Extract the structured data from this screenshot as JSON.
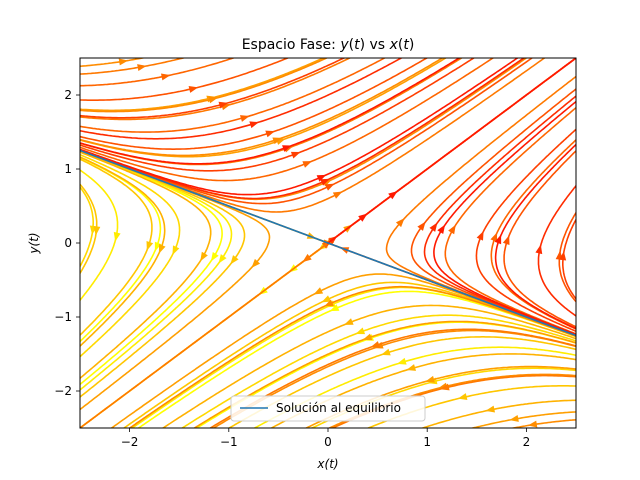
{
  "chart_data": {
    "type": "streamplot",
    "title": "Espacio Fase: y(t) vs x(t)",
    "xlabel": "x(t)",
    "ylabel": "y(t)",
    "xlim": [
      -2.5,
      2.5
    ],
    "ylim": [
      -2.5,
      2.5
    ],
    "xticks": [
      -2,
      -1,
      0,
      1,
      2
    ],
    "yticks": [
      -2,
      -1,
      0,
      1,
      2
    ],
    "xtick_labels": [
      "−2",
      "−1",
      "0",
      "1",
      "2"
    ],
    "ytick_labels": [
      "−2",
      "−1",
      "0",
      "1",
      "2"
    ],
    "grid": false,
    "colormap": "autumn_r",
    "legend": {
      "placement": "lower center",
      "entries": [
        "Solución al equilibrio"
      ]
    },
    "series": [
      {
        "name": "Solución al equilibrio",
        "color": "#1f77b4",
        "x": [
          -2.5,
          2.5
        ],
        "y": [
          1.25,
          -1.25
        ]
      }
    ]
  }
}
